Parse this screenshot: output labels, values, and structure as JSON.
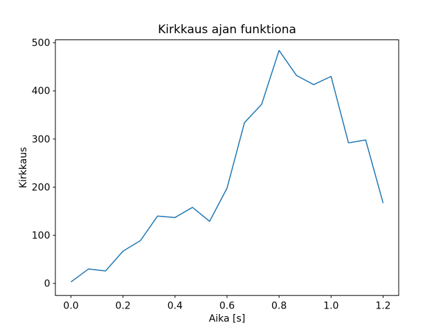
{
  "figure": {
    "background": "#ffffff"
  },
  "chart_data": {
    "type": "line",
    "title": "Kirkkaus ajan funktiona",
    "xlabel": "Aika [s]",
    "ylabel": "Kirkkaus",
    "x": [
      0.0,
      0.067,
      0.133,
      0.2,
      0.267,
      0.333,
      0.4,
      0.467,
      0.533,
      0.6,
      0.667,
      0.733,
      0.8,
      0.867,
      0.933,
      1.0,
      1.067,
      1.133,
      1.2
    ],
    "y": [
      3,
      30,
      26,
      67,
      89,
      140,
      137,
      158,
      129,
      198,
      334,
      372,
      484,
      432,
      413,
      430,
      292,
      298,
      167
    ],
    "xticks": [
      0.0,
      0.2,
      0.4,
      0.6,
      0.8,
      1.0,
      1.2
    ],
    "xtick_labels": [
      "0.0",
      "0.2",
      "0.4",
      "0.6",
      "0.8",
      "1.0",
      "1.2"
    ],
    "yticks": [
      0,
      100,
      200,
      300,
      400,
      500
    ],
    "ytick_labels": [
      "0",
      "100",
      "200",
      "300",
      "400",
      "500"
    ],
    "xlim": [
      -0.06,
      1.26
    ],
    "ylim": [
      -25,
      506
    ],
    "line_color": "#1f77b4",
    "line_width": 1.5,
    "spine_color": "#000000",
    "grid": false,
    "legend": null
  }
}
